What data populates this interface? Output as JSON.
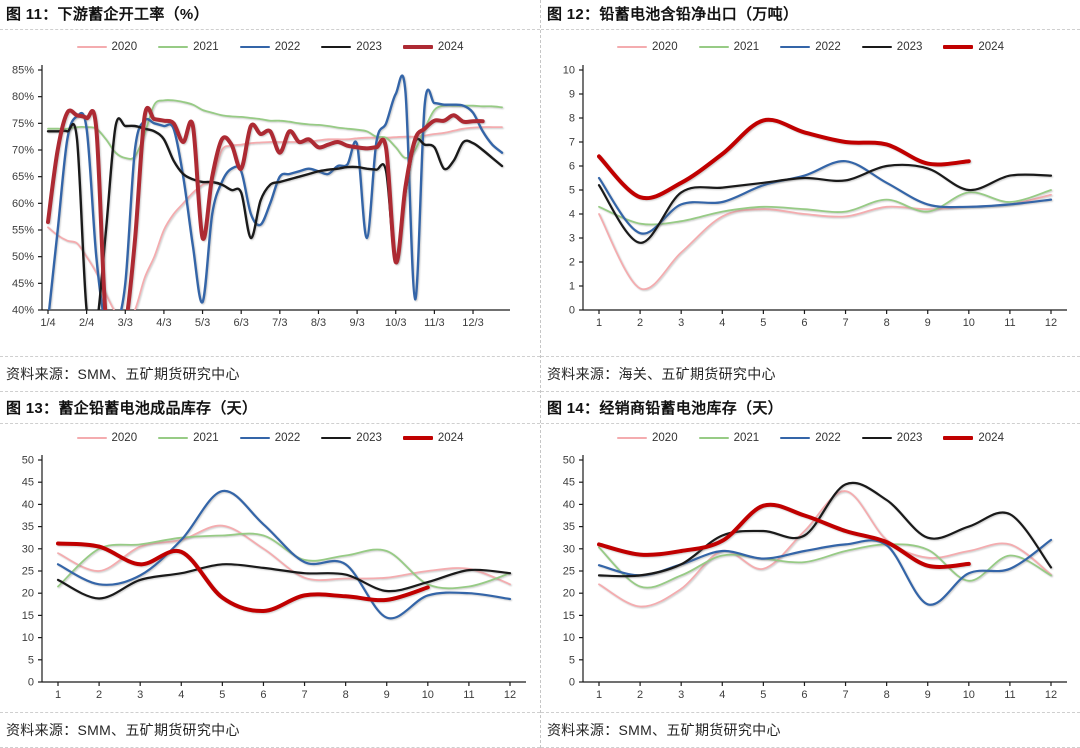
{
  "page": {
    "background": "#ffffff",
    "divider_color": "#c6c6c6"
  },
  "chart_data": [
    {
      "id": "fig11",
      "type": "line",
      "title": "图 11：下游蓄企开工率（%）",
      "source": "资料来源：SMM、五矿期货研究中心",
      "x_type": "weekly",
      "x_tick_labels": [
        "1/4",
        "2/4",
        "3/3",
        "4/3",
        "5/3",
        "6/3",
        "7/3",
        "8/3",
        "9/3",
        "10/3",
        "11/3",
        "12/3"
      ],
      "ylim": [
        40,
        85
      ],
      "y_step": 5,
      "y_suffix": "%",
      "grid": false,
      "legend_position": "top-center",
      "series": [
        {
          "name": "2020",
          "color": "#F4ACAF",
          "width": 1.8,
          "values": [
            55.5,
            54,
            53,
            52.5,
            50,
            47,
            43,
            39.5,
            37.5,
            40,
            46,
            50,
            55,
            58,
            60,
            62,
            63.5,
            64.5,
            70,
            70.8,
            71,
            71.3,
            71.4,
            71.5,
            71.5,
            71.5,
            71.5,
            71.5,
            71.8,
            72,
            72,
            72,
            72.2,
            72.3,
            72.3,
            72.3,
            72.4,
            72.5,
            72.5,
            72.7,
            73,
            73.2,
            73.6,
            74,
            74.2,
            74.3,
            74.3,
            74.3
          ]
        },
        {
          "name": "2021",
          "color": "#97CB85",
          "width": 1.8,
          "values": [
            74,
            74,
            74,
            74.3,
            74.3,
            74,
            72,
            69.5,
            68.5,
            68.8,
            73,
            78.5,
            79.3,
            79.3,
            79,
            78.5,
            77.5,
            77,
            76.5,
            76.3,
            76.2,
            76,
            75.8,
            75.5,
            75.5,
            75.3,
            75,
            74.8,
            74.7,
            74.5,
            74.2,
            74,
            73.8,
            73.5,
            72.5,
            72.3,
            70.5,
            68.5,
            70,
            74,
            77.5,
            78.3,
            78.3,
            78.3,
            78.3,
            78.2,
            78.2,
            78
          ]
        },
        {
          "name": "2022",
          "color": "#3465A8",
          "width": 2.4,
          "values": [
            38,
            55,
            72,
            76.3,
            74,
            50,
            37,
            37,
            45,
            70,
            75.5,
            75,
            74.5,
            74,
            65,
            52,
            41.5,
            58,
            64,
            66.5,
            66,
            58,
            56,
            60,
            65,
            65.5,
            66,
            66.5,
            66,
            65.5,
            67,
            67.3,
            71,
            53.5,
            71.5,
            75,
            80.5,
            81,
            42,
            78.5,
            78.8,
            78.5,
            78.5,
            78.3,
            77,
            73.5,
            71,
            69.5
          ]
        },
        {
          "name": "2023",
          "color": "#1A1A1A",
          "width": 2.4,
          "values": [
            73.5,
            73.5,
            73.5,
            72,
            40,
            37,
            55,
            74.5,
            74.5,
            74.5,
            74,
            73.5,
            72,
            68,
            65.5,
            64.5,
            64,
            64,
            63.5,
            62.5,
            62,
            53.5,
            60.5,
            63.5,
            64,
            64.5,
            65,
            65.5,
            66,
            66.3,
            66.5,
            66.8,
            66.8,
            66.5,
            66.3,
            66,
            49,
            62,
            71.5,
            71,
            70.5,
            66.5,
            68,
            71.5,
            71.3,
            70,
            68.5,
            67
          ]
        },
        {
          "name": "2024",
          "color": "#AD2A33",
          "width": 4,
          "values": [
            56.5,
            70,
            77,
            76.5,
            76,
            74,
            38,
            36,
            37,
            53,
            76.3,
            75.8,
            75.5,
            75,
            71.5,
            74.5,
            53.5,
            65,
            72,
            71,
            66.5,
            74.5,
            73,
            73.5,
            69.5,
            73.5,
            71.5,
            72,
            70.5,
            71,
            71.5,
            70.8,
            70.5,
            70.3,
            70.5,
            70.3,
            49,
            63,
            72,
            74,
            75.5,
            75.5,
            76.5,
            75.3,
            75.4,
            75.4,
            null,
            null
          ]
        }
      ]
    },
    {
      "id": "fig12",
      "type": "line",
      "title": "图 12：铅蓄电池含铅净出口（万吨）",
      "source": "资料来源：海关、五矿期货研究中心",
      "x_type": "monthly",
      "x_tick_labels": [
        "1",
        "2",
        "3",
        "4",
        "5",
        "6",
        "7",
        "8",
        "9",
        "10",
        "11",
        "12"
      ],
      "ylim": [
        0,
        10
      ],
      "y_step": 1,
      "y_suffix": "",
      "grid": false,
      "legend_position": "top-center",
      "series": [
        {
          "name": "2020",
          "color": "#F4ACAF",
          "width": 1.8,
          "values": [
            4.0,
            0.9,
            2.4,
            3.9,
            4.2,
            4.0,
            3.9,
            4.3,
            4.2,
            4.3,
            4.4,
            4.8
          ]
        },
        {
          "name": "2021",
          "color": "#97CB85",
          "width": 1.8,
          "values": [
            4.3,
            3.6,
            3.7,
            4.1,
            4.3,
            4.2,
            4.1,
            4.6,
            4.1,
            4.9,
            4.5,
            5.0
          ]
        },
        {
          "name": "2022",
          "color": "#3465A8",
          "width": 2.2,
          "values": [
            5.5,
            3.2,
            4.4,
            4.5,
            5.2,
            5.6,
            6.2,
            5.3,
            4.4,
            4.3,
            4.4,
            4.6
          ]
        },
        {
          "name": "2023",
          "color": "#1A1A1A",
          "width": 2.2,
          "values": [
            5.2,
            2.8,
            4.9,
            5.1,
            5.3,
            5.5,
            5.4,
            6.0,
            5.9,
            5.0,
            5.6,
            5.6
          ]
        },
        {
          "name": "2024",
          "color": "#C00000",
          "width": 4,
          "values": [
            6.4,
            4.7,
            5.3,
            6.5,
            7.9,
            7.4,
            7.0,
            6.9,
            6.1,
            6.2
          ]
        }
      ]
    },
    {
      "id": "fig13",
      "type": "line",
      "title": "图 13：蓄企铅蓄电池成品库存（天）",
      "source": "资料来源：SMM、五矿期货研究中心",
      "x_type": "monthly",
      "x_tick_labels": [
        "1",
        "2",
        "3",
        "4",
        "5",
        "6",
        "7",
        "8",
        "9",
        "10",
        "11",
        "12"
      ],
      "ylim": [
        0,
        50
      ],
      "y_step": 5,
      "y_suffix": "",
      "grid": false,
      "legend_position": "top-center",
      "series": [
        {
          "name": "2020",
          "color": "#F4ACAF",
          "width": 1.8,
          "values": [
            29,
            25,
            30.5,
            32,
            35.2,
            30,
            23.5,
            23.3,
            23.5,
            25,
            25.5,
            22
          ]
        },
        {
          "name": "2021",
          "color": "#97CB85",
          "width": 1.8,
          "values": [
            21.5,
            30,
            31,
            32.5,
            33,
            33,
            27.5,
            28.5,
            29.5,
            22,
            21.5,
            24.5
          ]
        },
        {
          "name": "2022",
          "color": "#3465A8",
          "width": 2.2,
          "values": [
            26.5,
            22,
            24,
            32,
            43,
            35.5,
            27,
            26.5,
            14.5,
            19.5,
            20,
            18.7
          ]
        },
        {
          "name": "2023",
          "color": "#1A1A1A",
          "width": 2.2,
          "values": [
            23,
            18.8,
            23,
            24.5,
            26.5,
            25.7,
            24.5,
            24.2,
            20.5,
            22.5,
            25.2,
            24.5
          ]
        },
        {
          "name": "2024",
          "color": "#C00000",
          "width": 4,
          "values": [
            31.2,
            30.5,
            26.5,
            29.3,
            19,
            16,
            19.5,
            19.3,
            18.5,
            21.3
          ]
        }
      ]
    },
    {
      "id": "fig14",
      "type": "line",
      "title": "图 14：经销商铅蓄电池库存（天）",
      "source": "资料来源：SMM、五矿期货研究中心",
      "x_type": "monthly",
      "x_tick_labels": [
        "1",
        "2",
        "3",
        "4",
        "5",
        "6",
        "7",
        "8",
        "9",
        "10",
        "11",
        "12"
      ],
      "ylim": [
        0,
        50
      ],
      "y_step": 5,
      "y_suffix": "",
      "grid": false,
      "legend_position": "top-center",
      "series": [
        {
          "name": "2020",
          "color": "#F4ACAF",
          "width": 1.8,
          "values": [
            22,
            17,
            21,
            29.5,
            25.5,
            34,
            43,
            32,
            28,
            29.5,
            31,
            24.2
          ]
        },
        {
          "name": "2021",
          "color": "#97CB85",
          "width": 1.8,
          "values": [
            30.3,
            21.5,
            24,
            28.5,
            27.8,
            27,
            29.5,
            31,
            29.8,
            22.8,
            28.5,
            24
          ]
        },
        {
          "name": "2022",
          "color": "#3465A8",
          "width": 2.2,
          "values": [
            26.3,
            24,
            26.5,
            29.5,
            27.8,
            29.5,
            31,
            30.8,
            17.5,
            24.5,
            25.5,
            32
          ]
        },
        {
          "name": "2023",
          "color": "#1A1A1A",
          "width": 2.2,
          "values": [
            24,
            24,
            26.5,
            33,
            34,
            33,
            44.5,
            41,
            32.5,
            35,
            37.8,
            25.8
          ]
        },
        {
          "name": "2024",
          "color": "#C00000",
          "width": 4,
          "values": [
            31,
            28.7,
            29.5,
            31.8,
            39.7,
            37.5,
            34,
            31.5,
            26.2,
            26.6
          ]
        }
      ]
    }
  ]
}
